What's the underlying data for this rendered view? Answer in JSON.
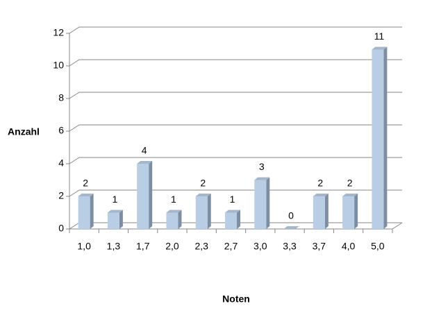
{
  "chart_data": {
    "type": "bar3d",
    "x_label": "Noten",
    "y_label": "Anzahl",
    "categories": [
      "1,0",
      "1,3",
      "1,7",
      "2,0",
      "2,3",
      "2,7",
      "3,0",
      "3,3",
      "3,7",
      "4,0",
      "5,0"
    ],
    "values": [
      2,
      1,
      4,
      1,
      2,
      1,
      3,
      0,
      2,
      2,
      11
    ],
    "color": "#b9cde5",
    "ylim": [
      0,
      12
    ],
    "yticks": [
      0,
      2,
      4,
      6,
      8,
      10,
      12
    ],
    "grid": true
  }
}
